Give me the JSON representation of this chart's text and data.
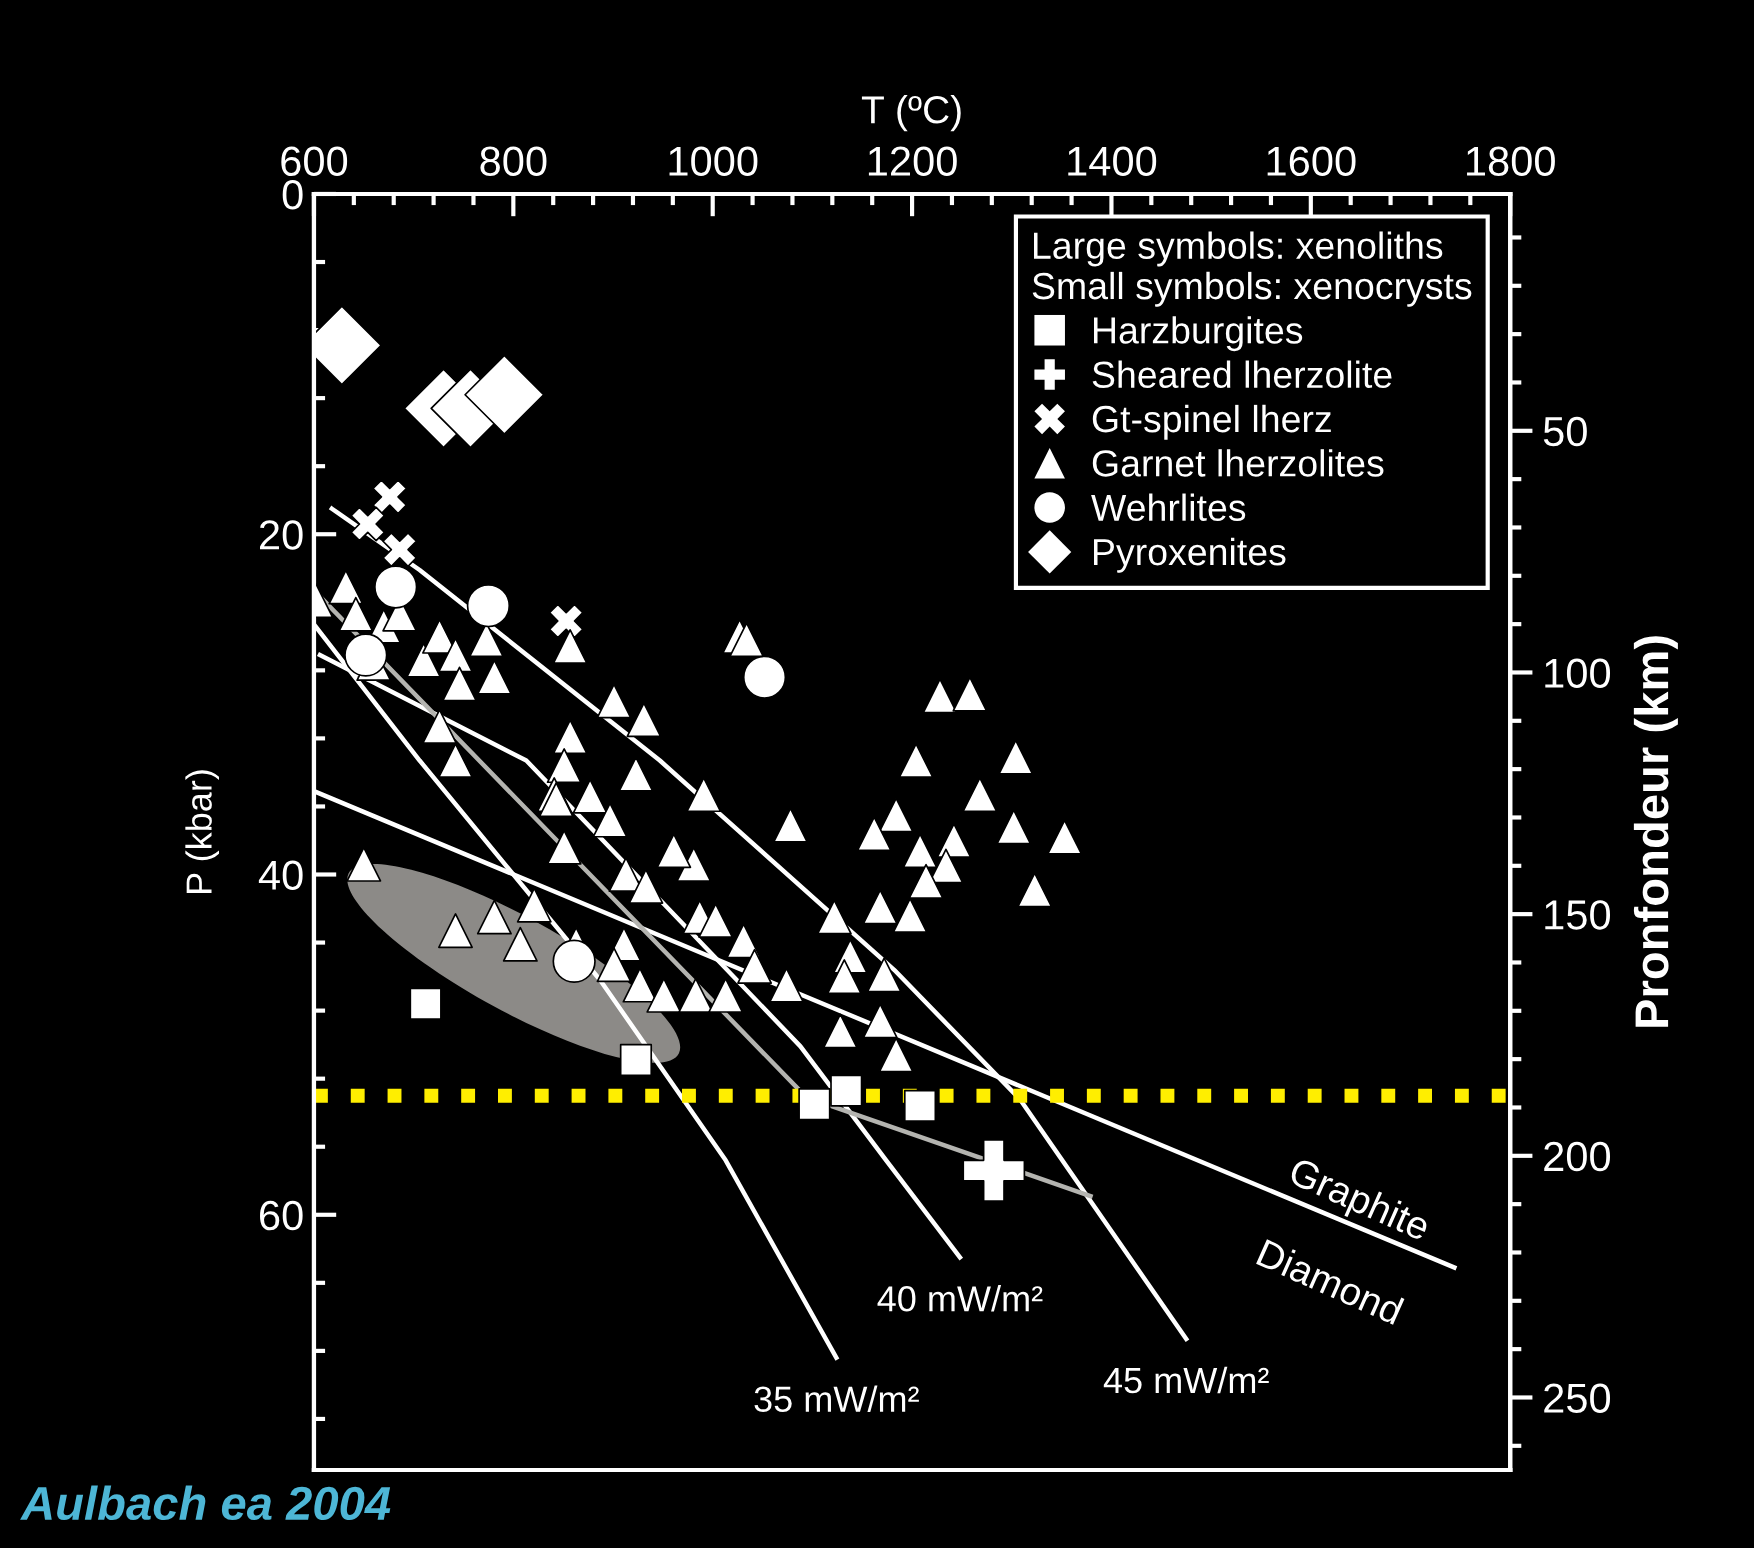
{
  "chart_data": {
    "type": "scatter",
    "xlabel": "T (ºC)",
    "ylabel": "P (kbar)",
    "y2label": "Pronfondeur (km)",
    "legend_title": "Large symbols: xenoliths\nSmall symbols: xenocrysts",
    "legend": "top right",
    "grid": false,
    "xlim": [
      600,
      1800
    ],
    "xticks": [
      600,
      {
        "value": 640,
        "label": null
      },
      {
        "value": 680,
        "label": null
      },
      {
        "value": 720,
        "label": null
      },
      {
        "value": 760,
        "label": null
      },
      800,
      {
        "value": 840,
        "label": null
      },
      {
        "value": 880,
        "label": null
      },
      {
        "value": 920,
        "label": null
      },
      {
        "value": 960,
        "label": null
      },
      1000,
      {
        "value": 1040,
        "label": null
      },
      {
        "value": 1080,
        "label": null
      },
      {
        "value": 1120,
        "label": null
      },
      {
        "value": 1160,
        "label": null
      },
      1200,
      {
        "value": 1240,
        "label": null
      },
      {
        "value": 1280,
        "label": null
      },
      {
        "value": 1320,
        "label": null
      },
      {
        "value": 1360,
        "label": null
      },
      1400,
      {
        "value": 1440,
        "label": null
      },
      {
        "value": 1480,
        "label": null
      },
      {
        "value": 1520,
        "label": null
      },
      {
        "value": 1560,
        "label": null
      },
      1600,
      {
        "value": 1640,
        "label": null
      },
      {
        "value": 1680,
        "label": null
      },
      {
        "value": 1720,
        "label": null
      },
      {
        "value": 1760,
        "label": null
      },
      1800
    ],
    "ylim": [
      75,
      0
    ],
    "yticks": [
      0,
      {
        "value": 4,
        "label": null
      },
      {
        "value": 8,
        "label": null
      },
      {
        "value": 12,
        "label": null
      },
      {
        "value": 16,
        "label": null
      },
      20,
      {
        "value": 24,
        "label": null
      },
      {
        "value": 28,
        "label": null
      },
      {
        "value": 32,
        "label": null
      },
      {
        "value": 36,
        "label": null
      },
      40,
      {
        "value": 44,
        "label": null
      },
      {
        "value": 48,
        "label": null
      },
      {
        "value": 52,
        "label": null
      },
      {
        "value": 56,
        "label": null
      },
      60,
      {
        "value": 64,
        "label": null
      },
      {
        "value": 68,
        "label": null
      },
      {
        "value": 72,
        "label": null
      }
    ],
    "y2lim": [
      265,
      1
    ],
    "y2ticks": [
      {
        "value": 10,
        "label": null
      },
      {
        "value": 20,
        "label": null
      },
      {
        "value": 30,
        "label": null
      },
      {
        "value": 40,
        "label": null
      },
      50,
      {
        "value": 60,
        "label": null
      },
      {
        "value": 70,
        "label": null
      },
      {
        "value": 80,
        "label": null
      },
      {
        "value": 90,
        "label": null
      },
      100,
      {
        "value": 110,
        "label": null
      },
      {
        "value": 120,
        "label": null
      },
      {
        "value": 130,
        "label": null
      },
      {
        "value": 140,
        "label": null
      },
      150,
      {
        "value": 160,
        "label": null
      },
      {
        "value": 170,
        "label": null
      },
      {
        "value": 180,
        "label": null
      },
      {
        "value": 190,
        "label": null
      },
      200,
      {
        "value": 210,
        "label": null
      },
      {
        "value": 220,
        "label": null
      },
      {
        "value": 230,
        "label": null
      },
      {
        "value": 240,
        "label": null
      },
      250,
      {
        "value": 260,
        "label": null
      }
    ],
    "series": [
      {
        "type": "line",
        "color": "#ffffff",
        "x": [
          600,
          1744
        ],
        "values": [
          35.1,
          63.1
        ]
      },
      {
        "type": "line",
        "name": "35 mW/m²",
        "color": "#ffffff",
        "x": [
          600,
          706,
          887,
          1013,
          1124
        ],
        "values": [
          25.3,
          33.3,
          46.2,
          56.8,
          68.4
        ]
      },
      {
        "type": "line",
        "name": "40 mW/m²",
        "color": "#ffffff",
        "x": [
          606,
          813,
          1088,
          1174,
          1248
        ],
        "values": [
          27.1,
          33.3,
          50.1,
          56.8,
          62.5
        ]
      },
      {
        "type": "line",
        "name": "45 mW/m²",
        "color": "#ffffff",
        "x": [
          618,
          706,
          947,
          1182,
          1308,
          1475
        ],
        "values": [
          18.5,
          22.1,
          33.3,
          45.6,
          53.2,
          67.3
        ]
      },
      {
        "type": "line",
        "color": "#b4b4b0",
        "x": [
          600,
          1094,
          1379
        ],
        "values": [
          23.3,
          53.1,
          58.9
        ]
      },
      {
        "name": "Harzburgites",
        "marker": "square",
        "color": "#ffffff",
        "x": [
          712,
          923,
          1102,
          1134,
          1208
        ],
        "values": [
          47.6,
          50.9,
          53.5,
          52.7,
          53.6
        ]
      },
      {
        "name": "Sheared lherzolite",
        "marker": "plus",
        "color": "#ffffff",
        "x": [
          1282
        ],
        "values": [
          57.4
        ]
      },
      {
        "name": "Gt-spinel lherz",
        "marker": "cross",
        "color": "#ffffff",
        "x": [
          676,
          654,
          686,
          853
        ],
        "values": [
          17.8,
          19.4,
          20.9,
          25.1
        ]
      },
      {
        "name": "Garnet lherzolites",
        "marker": "triangle",
        "color": "#ffffff",
        "x": [
          602,
          632,
          642,
          670,
          686,
          660,
          710,
          726,
          742,
          746,
          773,
          781,
          726,
          742,
          857,
          857,
          851,
          901,
          931,
          923,
          841,
          877,
          991,
          1027,
          1034,
          1204,
          650,
          742,
          781,
          821,
          807,
          863,
          911,
          901,
          927,
          951,
          983,
          1013,
          987,
          1003,
          1031,
          1042,
          1074,
          981,
          961,
          897,
          851,
          843,
          913,
          933,
          1228,
          1258,
          1304,
          1268,
          1078,
          1184,
          1162,
          1208,
          1242,
          1302,
          1353,
          1234,
          1214,
          1323,
          1168,
          1198,
          1122,
          1138,
          1172,
          1132,
          1168,
          1128,
          1184
        ],
        "values": [
          23.9,
          23.1,
          24.7,
          25.4,
          24.7,
          27.6,
          27.4,
          26.0,
          27.1,
          28.8,
          26.2,
          28.4,
          31.3,
          33.3,
          26.6,
          31.9,
          33.6,
          29.8,
          30.9,
          34.1,
          35.3,
          35.4,
          35.3,
          26.0,
          26.2,
          33.3,
          39.4,
          43.3,
          42.5,
          41.8,
          44.1,
          44.1,
          44.1,
          45.3,
          46.5,
          47.1,
          47.1,
          47.1,
          42.5,
          42.7,
          43.9,
          45.4,
          46.5,
          39.4,
          38.6,
          36.8,
          38.4,
          35.6,
          40.0,
          40.7,
          29.5,
          29.4,
          33.1,
          35.3,
          37.1,
          36.5,
          37.6,
          38.6,
          38.0,
          37.2,
          37.8,
          39.5,
          40.4,
          40.9,
          41.9,
          42.4,
          42.5,
          44.8,
          45.9,
          46.0,
          48.6,
          49.2,
          50.6
        ]
      },
      {
        "name": "Wehrlites",
        "marker": "circle",
        "color": "#ffffff",
        "x": [
          682,
          775,
          1052,
          861,
          652
        ],
        "values": [
          23.1,
          24.2,
          28.4,
          45.1,
          27.1
        ]
      },
      {
        "name": "Pyroxenites",
        "marker": "diamond",
        "color": "#ffffff",
        "x": [
          628,
          730,
          757,
          791
        ],
        "values": [
          8.9,
          12.6,
          12.6,
          11.8
        ]
      }
    ],
    "ref_lines": [
      {
        "axis": "y",
        "value": 53,
        "color": "#ffee00",
        "line_style": "dotted"
      }
    ],
    "annotations": [
      "Graphite",
      "Diamond",
      "Aulbach ea 2004"
    ]
  }
}
